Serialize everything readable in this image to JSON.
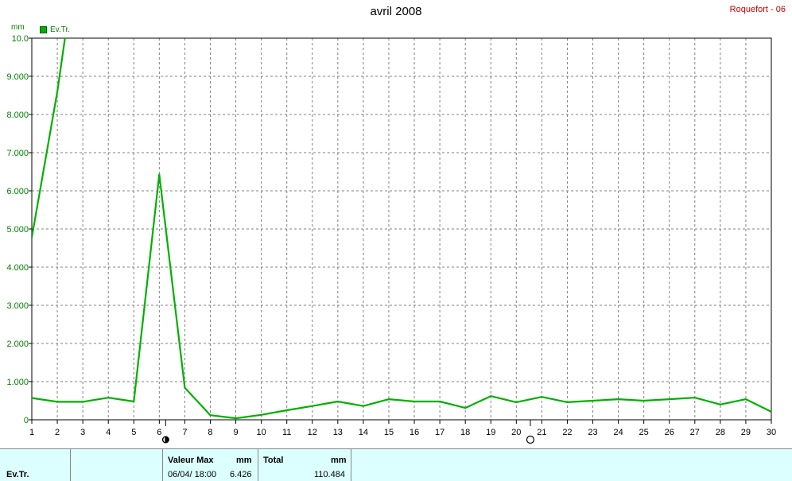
{
  "header": {
    "title": "avril 2008",
    "station": "Roquefort - 06"
  },
  "legend": {
    "label": "Ev.Tr."
  },
  "chart_data": {
    "type": "line",
    "ylabel": "mm",
    "ylim": [
      0,
      10
    ],
    "xlim": [
      1,
      30
    ],
    "y_tick_labels": [
      "0",
      "1.000",
      "2.000",
      "3.000",
      "4.000",
      "5.000",
      "6.000",
      "7.000",
      "8.000",
      "9.000",
      "10.0"
    ],
    "x_tick_labels": [
      "1",
      "2",
      "3",
      "4",
      "5",
      "6",
      "7",
      "8",
      "9",
      "10",
      "11",
      "12",
      "13",
      "14",
      "15",
      "16",
      "17",
      "18",
      "19",
      "20",
      "21",
      "22",
      "23",
      "24",
      "25",
      "26",
      "27",
      "28",
      "29",
      "30"
    ],
    "grid": true,
    "moon_markers": [
      {
        "x": 6.25,
        "phase": "full"
      },
      {
        "x": 20.55,
        "phase": "new"
      }
    ],
    "series": [
      {
        "name": "Ev.Tr.",
        "color": "#00b000",
        "x": [
          1,
          2,
          3,
          4,
          5,
          6,
          7,
          8,
          9,
          10,
          11,
          12,
          13,
          14,
          15,
          16,
          17,
          18,
          19,
          20,
          21,
          22,
          23,
          24,
          25,
          26,
          27,
          28,
          29,
          30
        ],
        "y": [
          0.57,
          0.47,
          0.47,
          0.58,
          0.48,
          6.43,
          0.84,
          0.12,
          0.04,
          0.13,
          0.25,
          0.36,
          0.48,
          0.36,
          0.54,
          0.48,
          0.48,
          0.31,
          0.62,
          0.46,
          0.6,
          0.46,
          0.5,
          0.54,
          0.5,
          0.54,
          0.58,
          0.4,
          0.54,
          0.21
        ]
      },
      {
        "name": "",
        "color": "#00b000",
        "x": [
          1,
          2,
          2.3
        ],
        "y": [
          4.78,
          8.6,
          10.0
        ]
      }
    ]
  },
  "footer": {
    "series_label": "Ev.Tr.",
    "max_header": "Valeur Max",
    "max_unit": "mm",
    "max_date": "06/04/  18:00",
    "max_value": "6.426",
    "total_header": "Total",
    "total_unit": "mm",
    "total_value": "110.484"
  }
}
